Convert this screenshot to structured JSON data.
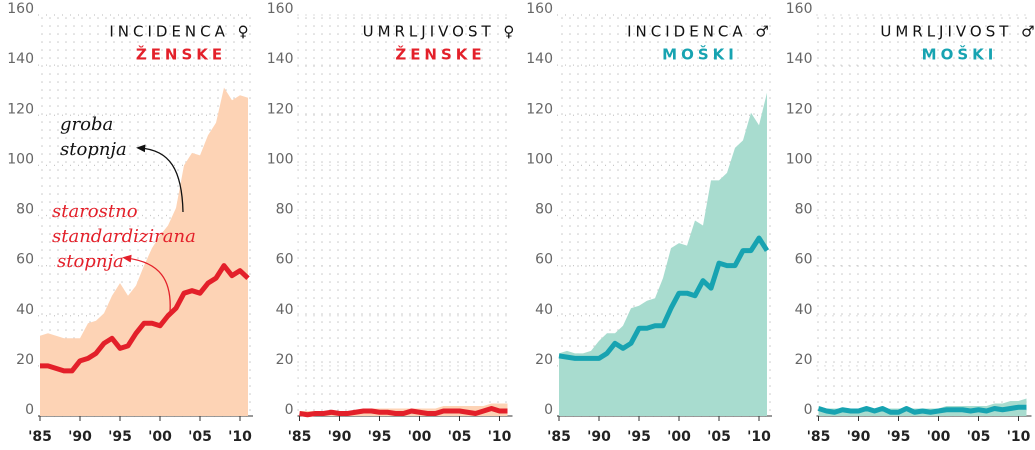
{
  "chart_data": [
    {
      "type": "line",
      "title": "INCIDENCA ♀",
      "subtitle": "ŽENSKE",
      "subtitle_color": "#e3202a",
      "x": [
        1985,
        1986,
        1987,
        1988,
        1989,
        1990,
        1991,
        1992,
        1993,
        1994,
        1995,
        1996,
        1997,
        1998,
        1999,
        2000,
        2001,
        2002,
        2003,
        2004,
        2005,
        2006,
        2007,
        2008,
        2009,
        2010,
        2011
      ],
      "series": [
        {
          "style": "area",
          "color": "#fdd3b5",
          "values": [
            32,
            33,
            32,
            31,
            31,
            31,
            37,
            38,
            41,
            48,
            53,
            48,
            52,
            60,
            67,
            72,
            76,
            83,
            100,
            105,
            104,
            112,
            117,
            131,
            126,
            128,
            127
          ]
        },
        {
          "style": "line",
          "color": "#e3202a",
          "values": [
            20,
            20,
            19,
            18,
            18,
            22,
            23,
            25,
            29,
            31,
            27,
            28,
            33,
            37,
            37,
            36,
            40,
            43,
            49,
            50,
            49,
            53,
            55,
            60,
            56,
            58,
            55
          ]
        }
      ],
      "annotations": [
        {
          "lines": [
            "groba",
            "stopnja"
          ],
          "color": "#111"
        },
        {
          "lines": [
            "starostno",
            "standardizirana",
            "stopnja"
          ],
          "color": "#e3202a"
        }
      ],
      "xlim": [
        1985,
        2011
      ],
      "ylim": [
        0,
        160
      ],
      "xticks": [
        {
          "value": 1985,
          "label": "'85"
        },
        {
          "value": 1990,
          "label": "'90"
        },
        {
          "value": 1995,
          "label": "'95"
        },
        {
          "value": 2000,
          "label": "'00"
        },
        {
          "value": 2005,
          "label": "'05"
        },
        {
          "value": 2010,
          "label": "'10"
        }
      ],
      "yticks": [
        0,
        20,
        40,
        60,
        80,
        100,
        120,
        140,
        160
      ],
      "grid": true
    },
    {
      "type": "line",
      "title": "UMRLJIVOST ♀",
      "subtitle": "ŽENSKE",
      "subtitle_color": "#e3202a",
      "x": [
        1985,
        1986,
        1987,
        1988,
        1989,
        1990,
        1991,
        1992,
        1993,
        1994,
        1995,
        1996,
        1997,
        1998,
        1999,
        2000,
        2001,
        2002,
        2003,
        2004,
        2005,
        2006,
        2007,
        2008,
        2009,
        2010,
        2011
      ],
      "series": [
        {
          "style": "area",
          "color": "#fdd3b5",
          "values": [
            2,
            2,
            2,
            2,
            2,
            2,
            2,
            2,
            3,
            3,
            3,
            3,
            3,
            3,
            3,
            3,
            3,
            3,
            4,
            4,
            4,
            4,
            4,
            4,
            5,
            5,
            5
          ]
        },
        {
          "style": "line",
          "color": "#e3202a",
          "values": [
            1,
            0.5,
            1,
            1,
            1.5,
            1,
            1,
            1.5,
            2,
            2,
            1.5,
            1.5,
            1,
            1,
            2,
            1.5,
            1,
            1,
            2,
            2,
            2,
            1.5,
            1,
            2,
            3,
            2,
            2
          ]
        }
      ],
      "xlim": [
        1985,
        2011
      ],
      "ylim": [
        0,
        160
      ],
      "xticks": [
        {
          "value": 1985,
          "label": "'85"
        },
        {
          "value": 1990,
          "label": "'90"
        },
        {
          "value": 1995,
          "label": "'95"
        },
        {
          "value": 2000,
          "label": "'00"
        },
        {
          "value": 2005,
          "label": "'05"
        },
        {
          "value": 2010,
          "label": "'10"
        }
      ],
      "yticks": [
        0,
        20,
        40,
        60,
        80,
        100,
        120,
        140,
        160
      ],
      "grid": true
    },
    {
      "type": "line",
      "title": "INCIDENCA ♂",
      "subtitle": "MOŠKI",
      "subtitle_color": "#17a3b1",
      "x": [
        1985,
        1986,
        1987,
        1988,
        1989,
        1990,
        1991,
        1992,
        1993,
        1994,
        1995,
        1996,
        1997,
        1998,
        1999,
        2000,
        2001,
        2002,
        2003,
        2004,
        2005,
        2006,
        2007,
        2008,
        2009,
        2010,
        2011
      ],
      "series": [
        {
          "style": "area",
          "color": "#a8dccf",
          "values": [
            25,
            26,
            25,
            25,
            26,
            30,
            33,
            33,
            36,
            43,
            44,
            46,
            47,
            55,
            67,
            69,
            68,
            78,
            76,
            94,
            94,
            97,
            107,
            110,
            121,
            116,
            129
          ]
        },
        {
          "style": "line",
          "color": "#17a3b1",
          "values": [
            24,
            23.5,
            23,
            23,
            23,
            23,
            25,
            29,
            27,
            29,
            35,
            35,
            36,
            36,
            43,
            49,
            49,
            48,
            54,
            51,
            61,
            60,
            60,
            66,
            66,
            71,
            66
          ]
        }
      ],
      "xlim": [
        1985,
        2011
      ],
      "ylim": [
        0,
        160
      ],
      "xticks": [
        {
          "value": 1985,
          "label": "'85"
        },
        {
          "value": 1990,
          "label": "'90"
        },
        {
          "value": 1995,
          "label": "'95"
        },
        {
          "value": 2000,
          "label": "'00"
        },
        {
          "value": 2005,
          "label": "'05"
        },
        {
          "value": 2010,
          "label": "'10"
        }
      ],
      "yticks": [
        0,
        20,
        40,
        60,
        80,
        100,
        120,
        140,
        160
      ],
      "grid": true
    },
    {
      "type": "line",
      "title": "UMRLJIVOST ♂",
      "subtitle": "MOŠKI",
      "subtitle_color": "#17a3b1",
      "x": [
        1985,
        1986,
        1987,
        1988,
        1989,
        1990,
        1991,
        1992,
        1993,
        1994,
        1995,
        1996,
        1997,
        1998,
        1999,
        2000,
        2001,
        2002,
        2003,
        2004,
        2005,
        2006,
        2007,
        2008,
        2009,
        2010,
        2011
      ],
      "series": [
        {
          "style": "area",
          "color": "#a8dccf",
          "values": [
            4,
            3,
            3,
            3,
            3,
            3,
            3,
            3,
            3,
            3,
            3,
            3,
            3,
            3,
            3,
            3,
            4,
            4,
            4,
            4,
            4,
            4,
            5,
            5,
            6,
            6,
            7
          ]
        },
        {
          "style": "line",
          "color": "#17a3b1",
          "values": [
            3,
            2,
            1.5,
            2.5,
            2,
            2,
            3,
            2,
            3,
            1.5,
            1.5,
            3,
            1.5,
            2,
            1.5,
            2,
            2.5,
            2.5,
            2.5,
            2,
            2.5,
            2,
            3,
            2.5,
            3,
            3.5,
            3.5
          ]
        }
      ],
      "xlim": [
        1985,
        2011
      ],
      "ylim": [
        0,
        160
      ],
      "xticks": [
        {
          "value": 1985,
          "label": "'85"
        },
        {
          "value": 1990,
          "label": "'90"
        },
        {
          "value": 1995,
          "label": "'95"
        },
        {
          "value": 2000,
          "label": "'00"
        },
        {
          "value": 2005,
          "label": "'05"
        },
        {
          "value": 2010,
          "label": "'10"
        }
      ],
      "yticks": [
        0,
        20,
        40,
        60,
        80,
        100,
        120,
        140,
        160
      ],
      "grid": true
    }
  ]
}
